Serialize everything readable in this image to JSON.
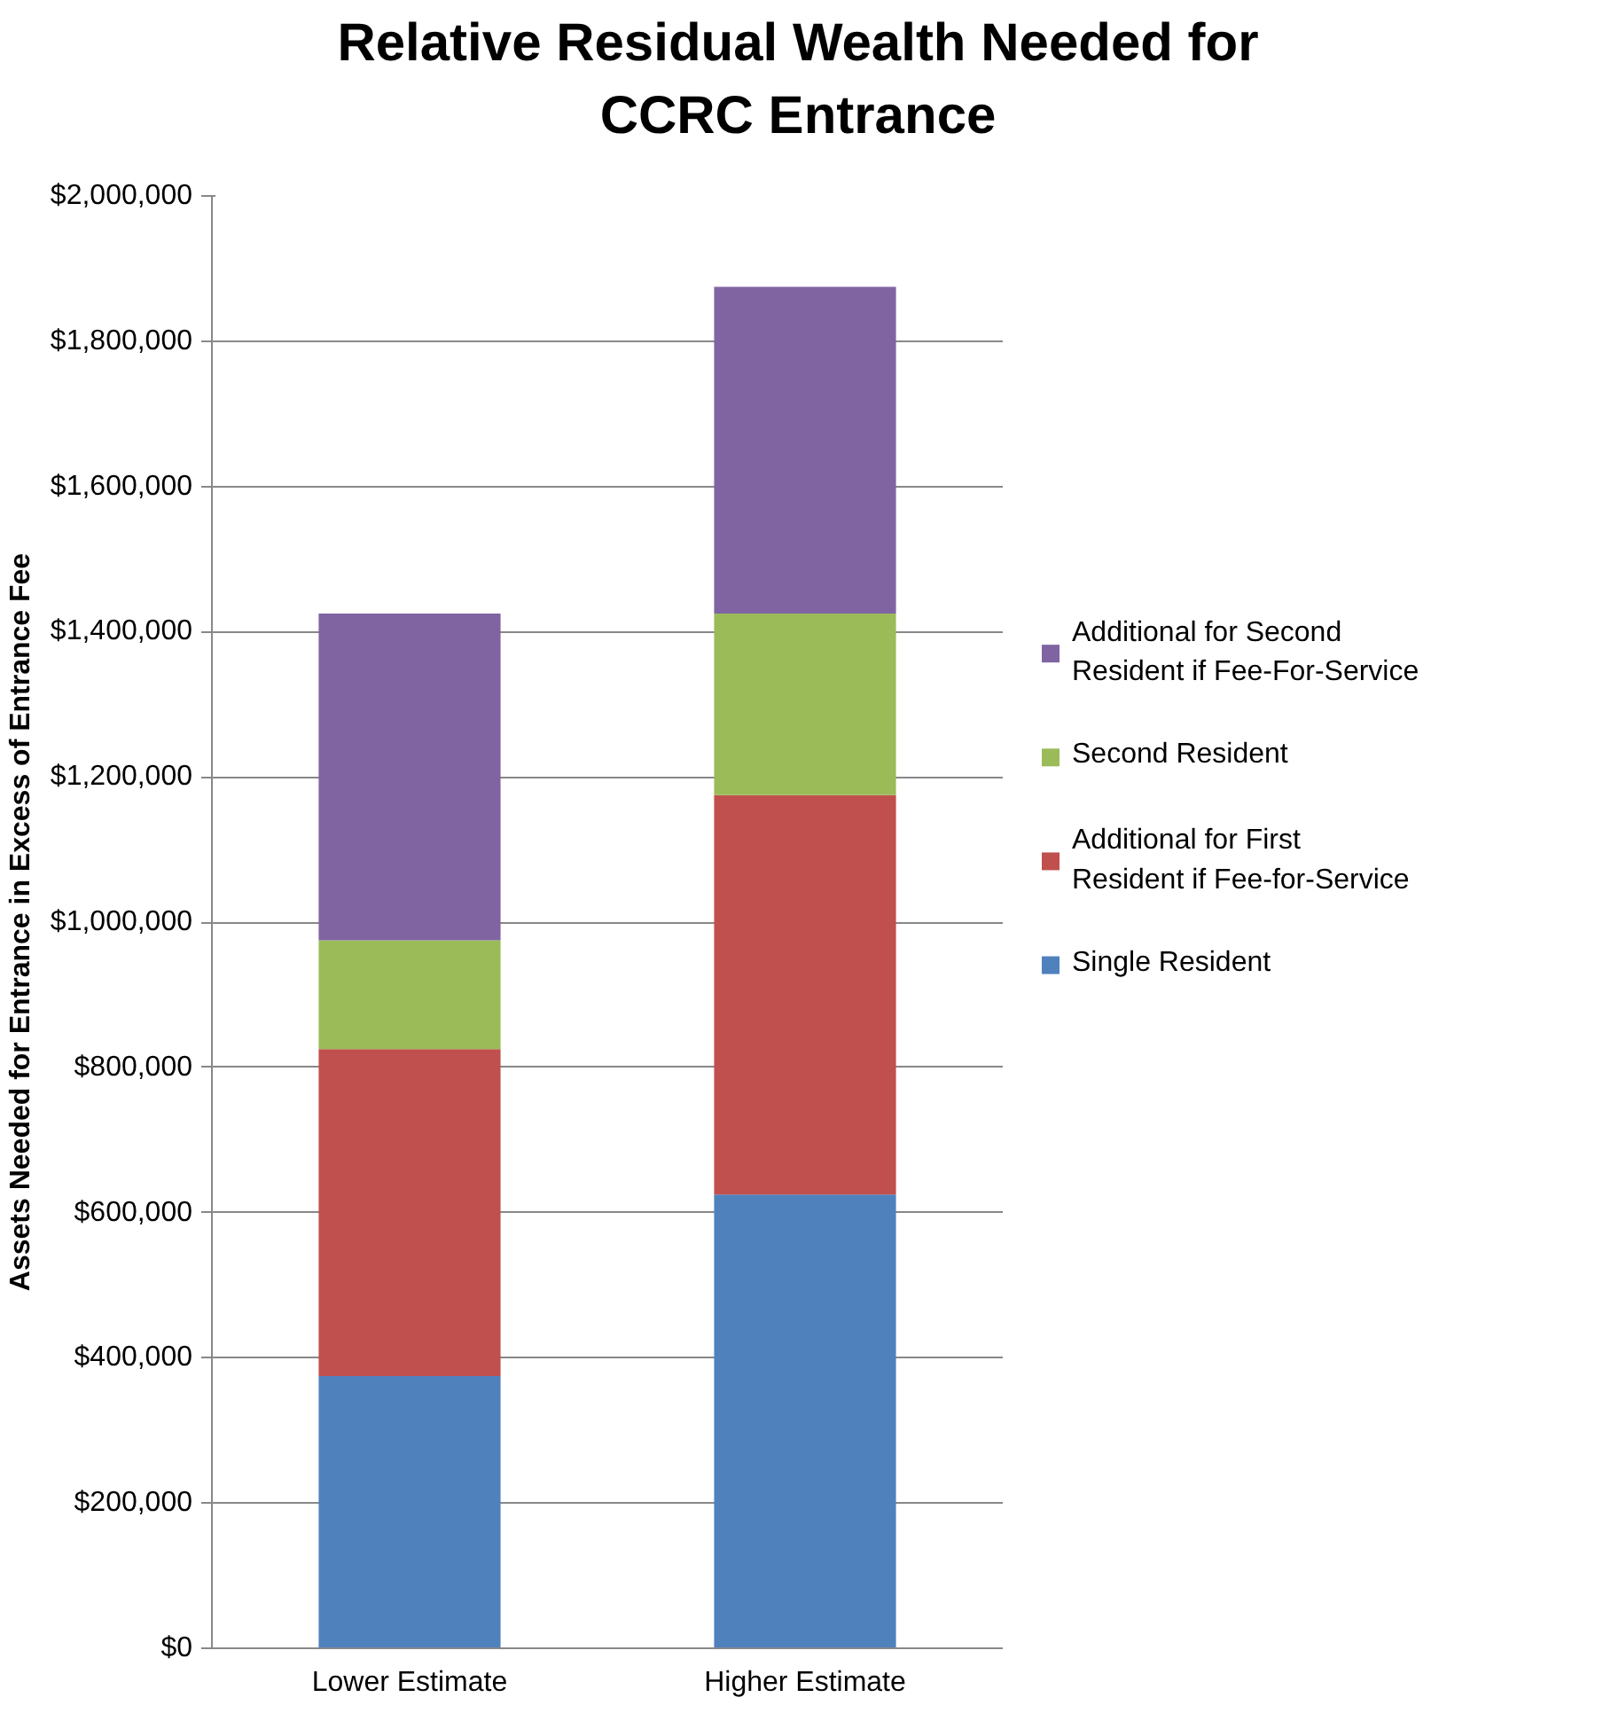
{
  "chart_data": {
    "type": "bar",
    "title": "Relative Residual Wealth Needed for CCRC Entrance",
    "ylabel": "Assets Needed for Entrance in Excess of Entrance Fee",
    "categories": [
      "Lower Estimate",
      "Higher Estimate"
    ],
    "stacked": true,
    "series": [
      {
        "name": "Single Resident",
        "color": "#4f81bd",
        "values": [
          375000,
          625000
        ]
      },
      {
        "name": "Additional for First Resident if Fee-for-Service",
        "color": "#c0504d",
        "values": [
          450000,
          550000
        ]
      },
      {
        "name": "Second Resident",
        "color": "#9bbb59",
        "values": [
          150000,
          250000
        ]
      },
      {
        "name": "Additional for Second Resident if Fee-For-Service",
        "color": "#8064a2",
        "values": [
          450000,
          450000
        ]
      }
    ],
    "ylim": [
      0,
      2000000
    ],
    "yticks": [
      {
        "value": 0,
        "label": "$0"
      },
      {
        "value": 200000,
        "label": "$200,000"
      },
      {
        "value": 400000,
        "label": "$400,000"
      },
      {
        "value": 600000,
        "label": "$600,000"
      },
      {
        "value": 800000,
        "label": "$800,000"
      },
      {
        "value": 1000000,
        "label": "$1,000,000"
      },
      {
        "value": 1200000,
        "label": "$1,200,000"
      },
      {
        "value": 1400000,
        "label": "$1,400,000"
      },
      {
        "value": 1600000,
        "label": "$1,600,000"
      },
      {
        "value": 1800000,
        "label": "$1,800,000"
      },
      {
        "value": 2000000,
        "label": "$2,000,000"
      }
    ],
    "grid": "y",
    "legend": "right"
  }
}
